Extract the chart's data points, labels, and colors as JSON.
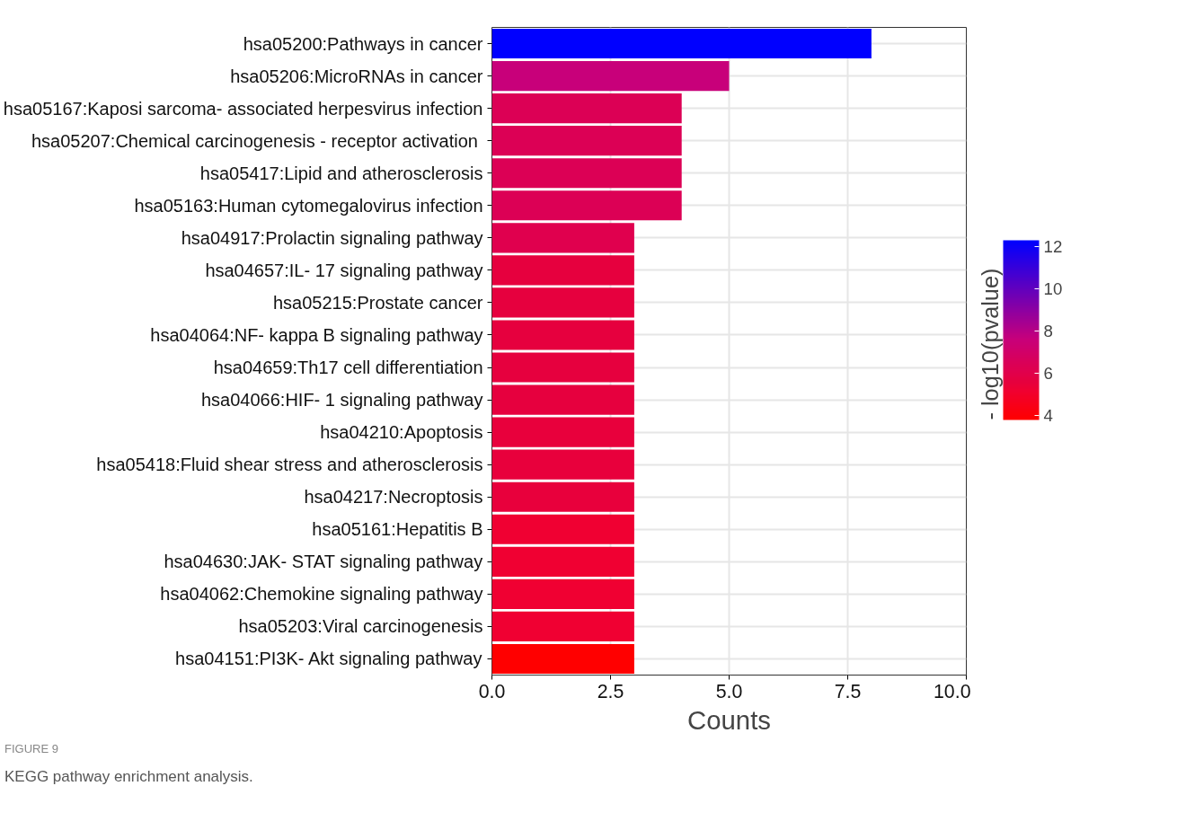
{
  "chart_data": {
    "type": "bar",
    "orientation": "horizontal",
    "categories": [
      "hsa05200:Pathways in cancer",
      "hsa05206:MicroRNAs in cancer",
      "hsa05167:Kaposi sarcoma- associated herpesvirus infection",
      "hsa05207:Chemical carcinogenesis -  receptor activation",
      "hsa05417:Lipid and atherosclerosis",
      "hsa05163:Human cytomegalovirus infection",
      "hsa04917:Prolactin signaling pathway",
      "hsa04657:IL- 17 signaling pathway",
      "hsa05215:Prostate cancer",
      "hsa04064:NF- kappa B signaling pathway",
      "hsa04659:Th17 cell differentiation",
      "hsa04066:HIF- 1 signaling pathway",
      "hsa04210:Apoptosis",
      "hsa05418:Fluid shear stress and atherosclerosis",
      "hsa04217:Necroptosis",
      "hsa05161:Hepatitis B",
      "hsa04630:JAK- STAT signaling pathway",
      "hsa04062:Chemokine signaling pathway",
      "hsa05203:Viral carcinogenesis",
      "hsa04151:PI3K- Akt signaling pathway"
    ],
    "values": [
      8,
      5,
      4,
      4,
      4,
      4,
      3,
      3,
      3,
      3,
      3,
      3,
      3,
      3,
      3,
      3,
      3,
      3,
      3,
      3
    ],
    "cvalues": [
      12.3,
      7.6,
      6.4,
      6.4,
      6.4,
      6.4,
      6.1,
      5.6,
      5.6,
      5.6,
      5.6,
      5.6,
      5.5,
      5.5,
      5.5,
      5.2,
      5.2,
      5.2,
      5.2,
      3.8
    ],
    "colors": [
      "#0000ff",
      "#c8007a",
      "#dc0055",
      "#dc0055",
      "#dc0055",
      "#dc0055",
      "#e0004e",
      "#e6003e",
      "#e6003e",
      "#e6003e",
      "#e6003e",
      "#e6003e",
      "#e8003c",
      "#e8003c",
      "#e8003c",
      "#f00032",
      "#f00032",
      "#f00032",
      "#f00032",
      "#ff0000"
    ],
    "xlabel": "Counts",
    "clabel": "- log10(pvalue)",
    "xlim": [
      0,
      10
    ],
    "xticks": [
      {
        "value": 0,
        "label": "0.0"
      },
      {
        "value": 2.5,
        "label": "2.5"
      },
      {
        "value": 5,
        "label": "5.0"
      },
      {
        "value": 7.5,
        "label": "7.5"
      },
      {
        "value": 10,
        "label": "10.0"
      }
    ],
    "clim": [
      3.8,
      12.3
    ],
    "cticks": [
      4,
      6,
      8,
      10,
      12
    ],
    "grid": true,
    "annotations": [
      "FIGURE 9",
      "KEGG pathway enrichment analysis."
    ]
  }
}
